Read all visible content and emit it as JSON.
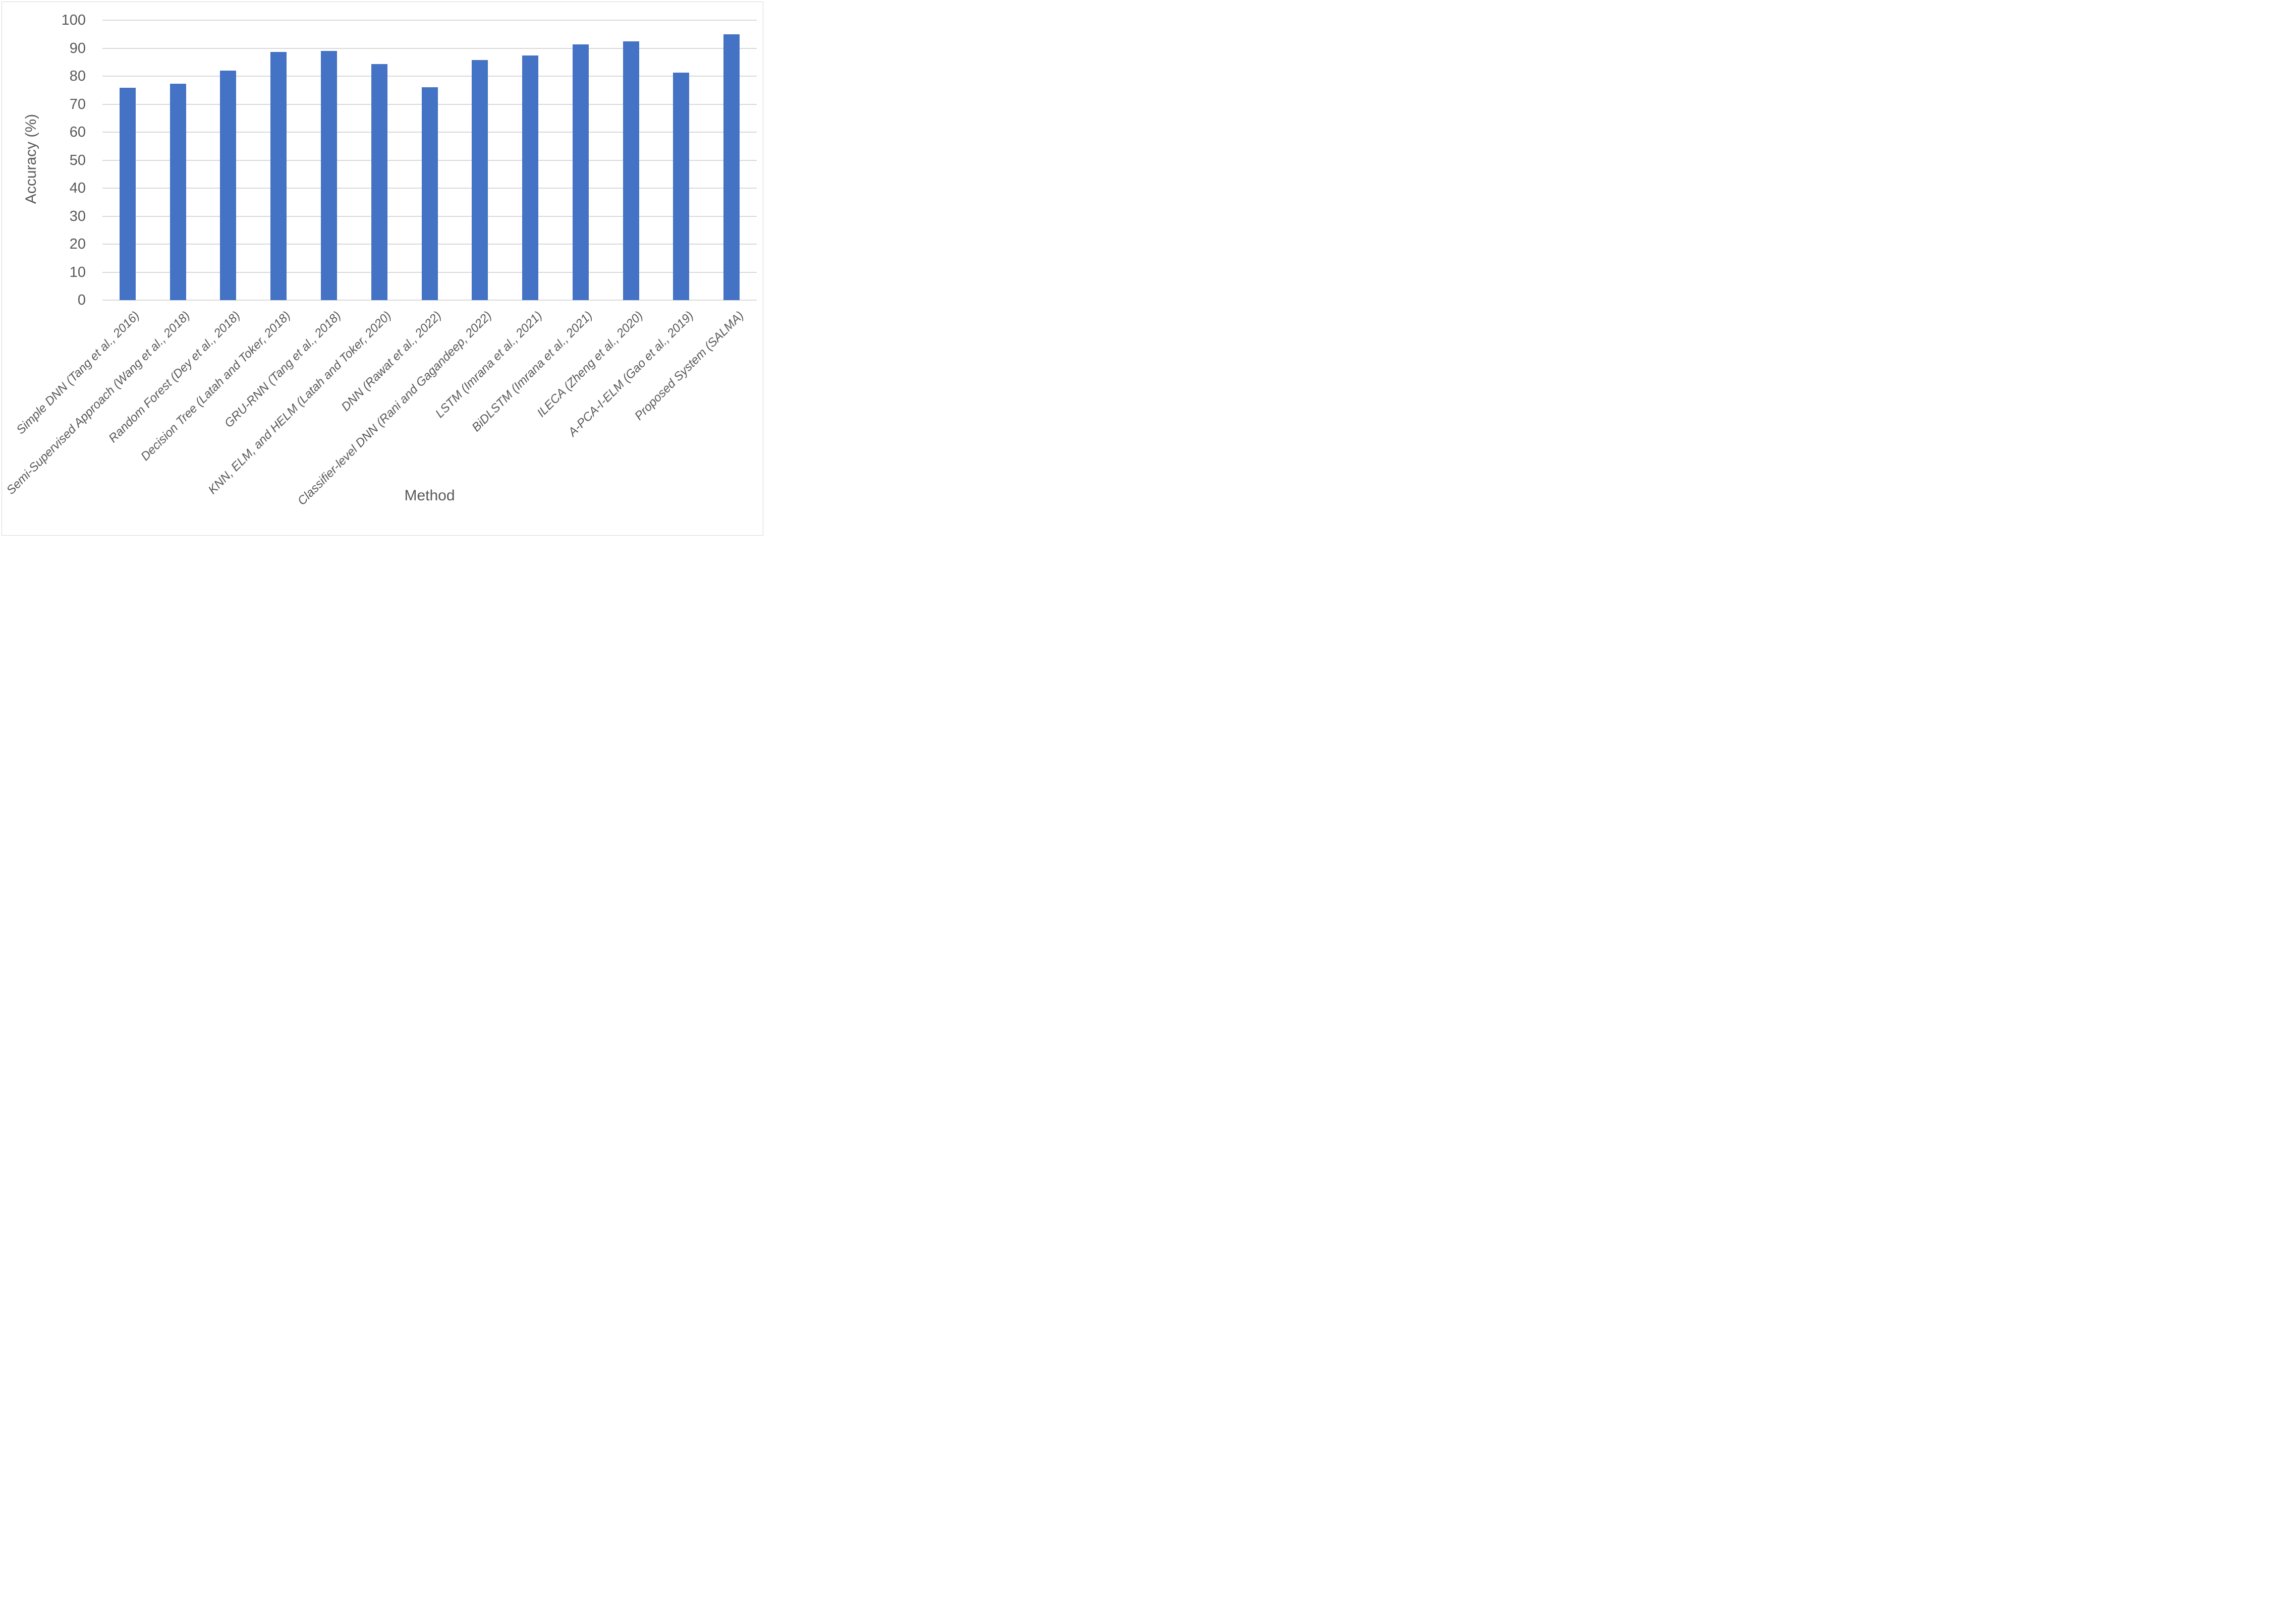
{
  "figure": {
    "background_color": "#FFFFFF",
    "border_color": "#D9D9D9"
  },
  "chart_data": {
    "type": "bar",
    "title": "",
    "xlabel": "Method",
    "ylabel": "Accuracy (%)",
    "ylim": [
      0,
      100
    ],
    "ytick_interval": 10,
    "ytick_labels": [
      "0",
      "10",
      "20",
      "30",
      "40",
      "50",
      "60",
      "70",
      "80",
      "90",
      "100"
    ],
    "grid": "horizontal",
    "legend_position": "none",
    "bar_color": "#4472C4",
    "gridline_color": "#D9D9D9",
    "axis_text_color": "#595959",
    "categories": [
      "Simple DNN (Tang et al., 2016)",
      "Semi-Supervised Approach (Wang et al., 2018)",
      "Random Forest (Dey et al., 2018)",
      "Decision Tree (Latah and Toker, 2018)",
      "GRU-RNN (Tang et al., 2018)",
      "KNN, ELM, and HELM (Latah and Toker, 2020)",
      "DNN (Rawat et al., 2022)",
      "Classifier-level DNN (Rani and Gagandeep, 2022)",
      "LSTM (Imrana et al., 2021)",
      "BiDLSTM (Imrana et al., 2021)",
      "ILECA (Zheng et al., 2020)",
      "A-PCA-I-ELM (Gao et al., 2019)",
      "Proposed System (SALMA)"
    ],
    "values": [
      75.8,
      77.3,
      82.0,
      88.7,
      89.0,
      84.3,
      76.0,
      85.7,
      87.3,
      91.4,
      92.4,
      81.2,
      95.0
    ]
  }
}
